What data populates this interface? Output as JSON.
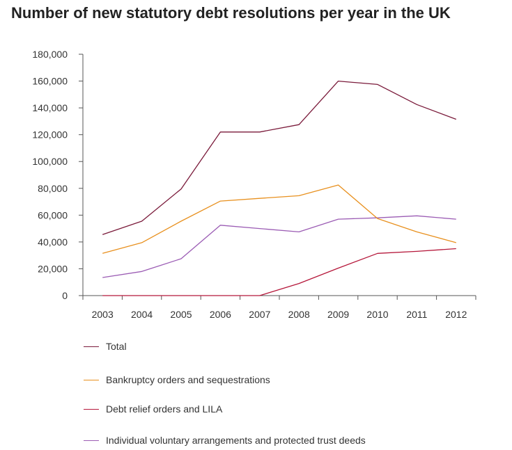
{
  "chart_data": {
    "type": "line",
    "title": "Number of new statutory debt resolutions per year in the UK",
    "xlabel": "",
    "ylabel": "",
    "categories": [
      "2003",
      "2004",
      "2005",
      "2006",
      "2007",
      "2008",
      "2009",
      "2010",
      "2011",
      "2012"
    ],
    "y_ticks": [
      "0",
      "20,000",
      "40,000",
      "60,000",
      "80,000",
      "100,000",
      "120,000",
      "140,000",
      "160,000",
      "180,000"
    ],
    "ylim": [
      0,
      180000
    ],
    "grid": false,
    "legend_position": "bottom",
    "series": [
      {
        "name": "Total",
        "color": "#7a1a3a",
        "values": [
          45500,
          55500,
          79500,
          122000,
          122000,
          127500,
          160000,
          157500,
          142500,
          131500
        ]
      },
      {
        "name": "Bankruptcy orders and sequestrations",
        "color": "#e8901e",
        "values": [
          31500,
          39500,
          55500,
          70500,
          72500,
          74500,
          82500,
          57500,
          47500,
          39500
        ]
      },
      {
        "name": "Debt relief orders and LILA",
        "color": "#b5173a",
        "values": [
          0,
          0,
          0,
          0,
          0,
          9000,
          20500,
          31500,
          33000,
          35000
        ]
      },
      {
        "name": "Individual voluntary arrangements and protected trust deeds",
        "color": "#9b5cb4",
        "values": [
          13500,
          18000,
          27500,
          52500,
          50000,
          47500,
          57000,
          58000,
          59500,
          57000
        ]
      }
    ]
  }
}
